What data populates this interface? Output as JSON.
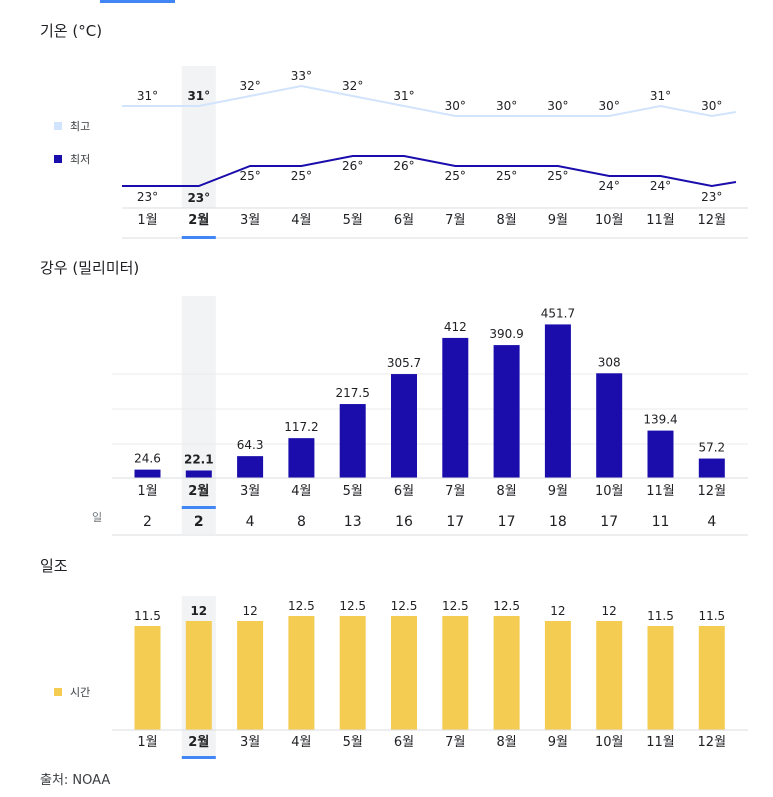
{
  "months": [
    "1월",
    "2월",
    "3월",
    "4월",
    "5월",
    "6월",
    "7월",
    "8월",
    "9월",
    "10월",
    "11월",
    "12월"
  ],
  "selected_month_index": 1,
  "colors": {
    "high_line": "#d2e3fc",
    "low_line": "#1a0dab",
    "rain_bar": "#1a0dab",
    "sun_bar": "#f5cc52",
    "selected_band": "#f1f3f4",
    "selected_tab": "#4285f4",
    "axis": "#dadce0"
  },
  "temperature": {
    "title": "기온 (°C)",
    "legend_high": "최고",
    "legend_low": "최저"
  },
  "rain": {
    "title": "강우 (밀리미터)",
    "days_label": "일"
  },
  "sun": {
    "title": "일조",
    "legend": "시간"
  },
  "source": "출처: NOAA",
  "chart_data": [
    {
      "type": "line",
      "title": "기온 (°C)",
      "categories": [
        "1월",
        "2월",
        "3월",
        "4월",
        "5월",
        "6월",
        "7월",
        "8월",
        "9월",
        "10월",
        "11월",
        "12월"
      ],
      "series": [
        {
          "name": "최고",
          "values": [
            31,
            31,
            32,
            33,
            32,
            31,
            30,
            30,
            30,
            30,
            31,
            30
          ],
          "labels": [
            "31°",
            "31°",
            "32°",
            "33°",
            "32°",
            "31°",
            "30°",
            "30°",
            "30°",
            "30°",
            "31°",
            "30°"
          ]
        },
        {
          "name": "최저",
          "values": [
            23,
            23,
            25,
            25,
            26,
            26,
            25,
            25,
            25,
            24,
            24,
            23
          ],
          "labels": [
            "23°",
            "23°",
            "25°",
            "25°",
            "26°",
            "26°",
            "25°",
            "25°",
            "25°",
            "24°",
            "24°",
            "23°"
          ]
        }
      ],
      "legend": "left"
    },
    {
      "type": "bar",
      "title": "강우 (밀리미터)",
      "categories": [
        "1월",
        "2월",
        "3월",
        "4월",
        "5월",
        "6월",
        "7월",
        "8월",
        "9월",
        "10월",
        "11월",
        "12월"
      ],
      "values": [
        24.6,
        22.1,
        64.3,
        117.2,
        217.5,
        305.7,
        412,
        390.9,
        451.7,
        308,
        139.4,
        57.2
      ],
      "labels": [
        "24.6",
        "22.1",
        "64.3",
        "117.2",
        "217.5",
        "305.7",
        "412",
        "390.9",
        "451.7",
        "308",
        "139.4",
        "57.2"
      ],
      "days": {
        "label": "일",
        "values": [
          2,
          2,
          4,
          8,
          13,
          16,
          17,
          17,
          18,
          17,
          11,
          4
        ]
      },
      "grid": true
    },
    {
      "type": "bar",
      "title": "일조",
      "categories": [
        "1월",
        "2월",
        "3월",
        "4월",
        "5월",
        "6월",
        "7월",
        "8월",
        "9월",
        "10월",
        "11월",
        "12월"
      ],
      "series": [
        {
          "name": "시간",
          "values": [
            11.5,
            12,
            12,
            12.5,
            12.5,
            12.5,
            12.5,
            12.5,
            12,
            12,
            11.5,
            11.5
          ]
        }
      ],
      "labels": [
        "11.5",
        "12",
        "12",
        "12.5",
        "12.5",
        "12.5",
        "12.5",
        "12.5",
        "12",
        "12",
        "11.5",
        "11.5"
      ],
      "legend": "left"
    }
  ]
}
